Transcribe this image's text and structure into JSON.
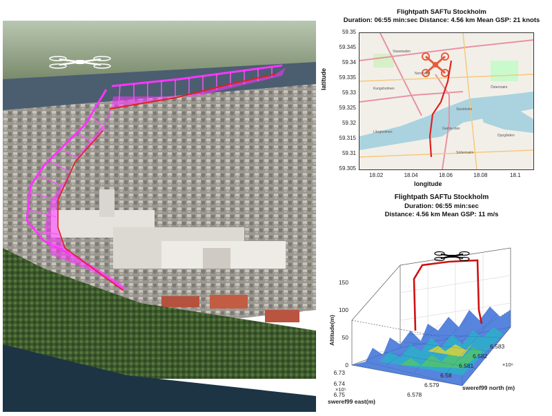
{
  "map_plot": {
    "title": "Flightpath SAFTu Stockholm",
    "subtitle": "Duration: 06:55 min:sec   Distance: 4.56 km   Mean GSP: 21 knots",
    "ylabel": "latitude",
    "xlabel": "longitude",
    "yticks": [
      "59.35",
      "59.345",
      "59.34",
      "59.335",
      "59.33",
      "59.325",
      "59.32",
      "59.315",
      "59.31",
      "59.305"
    ],
    "xticks": [
      "18.02",
      "18.04",
      "18.06",
      "18.08",
      "18.1"
    ],
    "map_labels": [
      "Vasastaden",
      "Östermalm",
      "Kungsholmen",
      "Stockholm",
      "Norrmalm",
      "Gamla stan",
      "Södermalm",
      "Långholmen",
      "Djurgården"
    ],
    "path_color": "#e02020"
  },
  "plot3d": {
    "title": "Flightpath SAFTu Stockholm",
    "line2": "Duration: 06:55 min:sec",
    "line3": "Distance: 4.56 km   Mean GSP: 11 m/s",
    "zlabel": "Altitude(m)",
    "zticks": [
      "0",
      "50",
      "100",
      "150"
    ],
    "xlabel": "sweref99 east(m)",
    "xticks": [
      "6.73",
      "6.74",
      "6.75"
    ],
    "x_multiplier": "×10⁵",
    "ylabel": "sweref99 north (m)",
    "yticks": [
      "6.578",
      "6.579",
      "6.58",
      "6.581",
      "6.582",
      "6.583"
    ],
    "y_multiplier": "×10⁶",
    "path_color": "#d01010"
  },
  "aerial": {
    "path_color": "#ff33ff",
    "ground_path_color": "#ff2020"
  }
}
